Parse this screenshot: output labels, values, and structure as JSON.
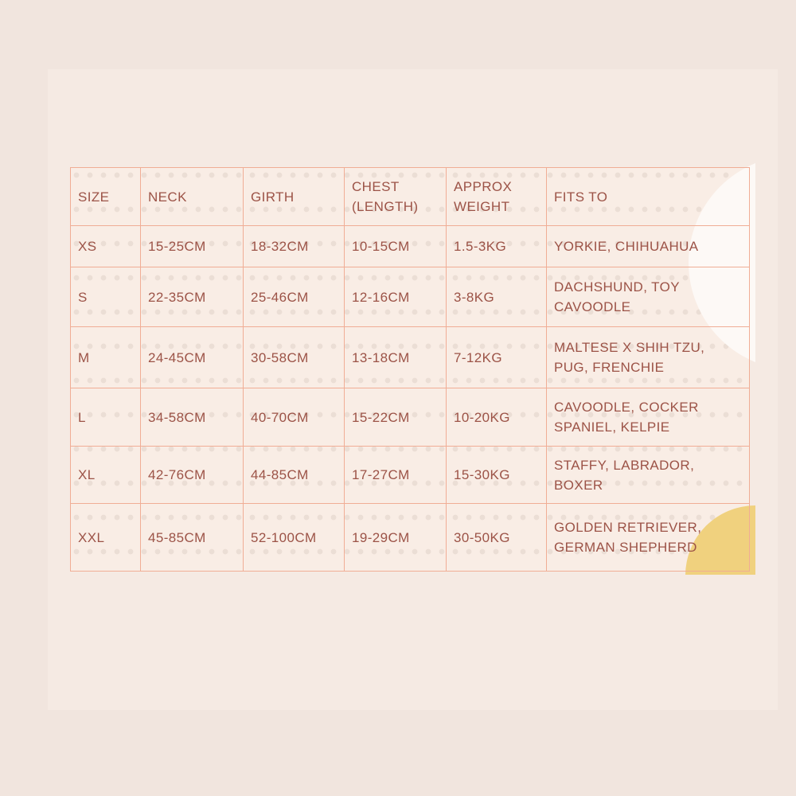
{
  "colors": {
    "page_background": "#f1e5de",
    "card_background": "#f5eae3",
    "table_background": "#f9ede5",
    "table_border": "#f0ad95",
    "text": "#9c5347",
    "yellow_accent": "#f0d17e",
    "white_accent": "#fdf9f6"
  },
  "chart_data": {
    "type": "table",
    "title": "",
    "columns": [
      "SIZE",
      "NECK",
      "GIRTH",
      "CHEST (LENGTH)",
      "APPROX WEIGHT",
      "FITS TO"
    ],
    "rows": [
      {
        "size": "XS",
        "neck": "15-25CM",
        "girth": "18-32CM",
        "chest": "10-15CM",
        "weight": "1.5-3KG",
        "fits": "YORKIE, CHIHUAHUA"
      },
      {
        "size": "S",
        "neck": "22-35CM",
        "girth": "25-46CM",
        "chest": "12-16CM",
        "weight": "3-8KG",
        "fits": "DACHSHUND, TOY CAVOODLE"
      },
      {
        "size": "M",
        "neck": "24-45CM",
        "girth": "30-58CM",
        "chest": "13-18CM",
        "weight": "7-12KG",
        "fits": "MALTESE X SHIH TZU, PUG, FRENCHIE"
      },
      {
        "size": "L",
        "neck": "34-58CM",
        "girth": "40-70CM",
        "chest": "15-22CM",
        "weight": "10-20KG",
        "fits": "CAVOODLE, COCKER SPANIEL, KELPIE"
      },
      {
        "size": "XL",
        "neck": "42-76CM",
        "girth": "44-85CM",
        "chest": "17-27CM",
        "weight": "15-30KG",
        "fits": "STAFFY, LABRADOR, BOXER"
      },
      {
        "size": "XXL",
        "neck": "45-85CM",
        "girth": "52-100CM",
        "chest": "19-29CM",
        "weight": "30-50KG",
        "fits": "GOLDEN RETRIEVER, GERMAN SHEPHERD"
      }
    ]
  }
}
